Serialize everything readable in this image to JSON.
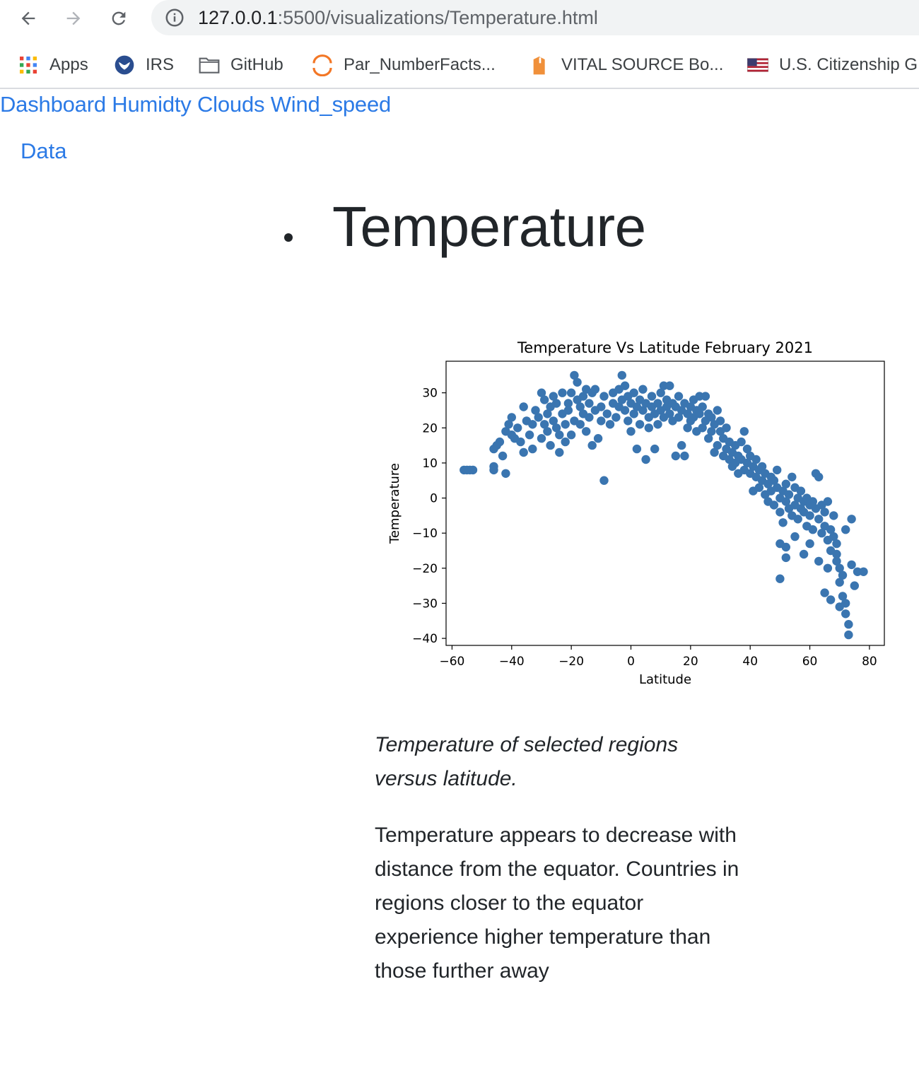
{
  "browser": {
    "url_host": "127.0.0.1",
    "url_rest": ":5500/visualizations/Temperature.html",
    "bookmarks": [
      {
        "label": "Apps",
        "icon": "apps-grid-icon"
      },
      {
        "label": "IRS",
        "icon": "irs-eagle-icon"
      },
      {
        "label": "GitHub",
        "icon": "folder-icon"
      },
      {
        "label": "Par_NumberFacts...",
        "icon": "orange-arc-icon"
      },
      {
        "label": "VITAL SOURCE Bo...",
        "icon": "orange-tag-icon"
      },
      {
        "label": "U.S. Citizenship G",
        "icon": "us-flag-icon"
      }
    ]
  },
  "nav": {
    "links": [
      "Dashboard",
      "Humidty",
      "Clouds",
      "Wind_speed"
    ],
    "data_link": "Data"
  },
  "page": {
    "title": "Temperature",
    "caption": "Temperature of selected regions versus latitude.",
    "description": "Temperature appears to decrease with distance from the equator. Countries in regions closer to the equator experience higher temperature than those further away"
  },
  "chart_data": {
    "type": "scatter",
    "title": "Temperature Vs Latitude February 2021",
    "xlabel": "Latitude",
    "ylabel": "Temperature",
    "xlim": [
      -62,
      85
    ],
    "ylim": [
      -42,
      39
    ],
    "xticks": [
      -60,
      -40,
      -20,
      0,
      20,
      40,
      60,
      80
    ],
    "yticks": [
      30,
      20,
      10,
      0,
      -10,
      -20,
      -30,
      -40
    ],
    "grid": false,
    "legend": "none",
    "point_color": "#3a75b0",
    "points": [
      [
        -56,
        8
      ],
      [
        -55,
        8
      ],
      [
        -54,
        8
      ],
      [
        -53,
        8
      ],
      [
        -46,
        9
      ],
      [
        -46,
        8
      ],
      [
        -42,
        7
      ],
      [
        -46,
        14
      ],
      [
        -45,
        15
      ],
      [
        -44,
        16
      ],
      [
        -43,
        12
      ],
      [
        -42,
        19
      ],
      [
        -41,
        21
      ],
      [
        -40,
        23
      ],
      [
        -40,
        18
      ],
      [
        -39,
        17
      ],
      [
        -38,
        20
      ],
      [
        -37,
        16
      ],
      [
        -36,
        26
      ],
      [
        -36,
        13
      ],
      [
        -35,
        22
      ],
      [
        -34,
        18
      ],
      [
        -33,
        21
      ],
      [
        -33,
        14
      ],
      [
        -32,
        25
      ],
      [
        -31,
        23
      ],
      [
        -30,
        30
      ],
      [
        -30,
        17
      ],
      [
        -29,
        28
      ],
      [
        -29,
        21
      ],
      [
        -28,
        24
      ],
      [
        -28,
        19
      ],
      [
        -27,
        26
      ],
      [
        -27,
        15
      ],
      [
        -26,
        22
      ],
      [
        -26,
        29
      ],
      [
        -25,
        20
      ],
      [
        -25,
        27
      ],
      [
        -24,
        18
      ],
      [
        -24,
        13
      ],
      [
        -23,
        24
      ],
      [
        -23,
        30
      ],
      [
        -22,
        21
      ],
      [
        -22,
        16
      ],
      [
        -21,
        27
      ],
      [
        -21,
        25
      ],
      [
        -20,
        30
      ],
      [
        -20,
        18
      ],
      [
        -19,
        22
      ],
      [
        -19,
        35
      ],
      [
        -18,
        28
      ],
      [
        -18,
        33
      ],
      [
        -17,
        26
      ],
      [
        -17,
        21
      ],
      [
        -16,
        29
      ],
      [
        -16,
        24
      ],
      [
        -15,
        31
      ],
      [
        -15,
        19
      ],
      [
        -14,
        27
      ],
      [
        -14,
        23
      ],
      [
        -13,
        30
      ],
      [
        -13,
        15
      ],
      [
        -12,
        25
      ],
      [
        -12,
        31
      ],
      [
        -11,
        17
      ],
      [
        -10,
        22
      ],
      [
        -10,
        26
      ],
      [
        -9,
        29
      ],
      [
        -9,
        5
      ],
      [
        -8,
        24
      ],
      [
        -7,
        21
      ],
      [
        -6,
        27
      ],
      [
        -6,
        30
      ],
      [
        -5,
        23
      ],
      [
        -4,
        26
      ],
      [
        -4,
        31
      ],
      [
        -3,
        28
      ],
      [
        -3,
        35
      ],
      [
        -2,
        25
      ],
      [
        -2,
        32
      ],
      [
        -1,
        29
      ],
      [
        -1,
        22
      ],
      [
        0,
        27
      ],
      [
        0,
        19
      ],
      [
        1,
        30
      ],
      [
        1,
        24
      ],
      [
        2,
        26
      ],
      [
        2,
        14
      ],
      [
        3,
        28
      ],
      [
        3,
        21
      ],
      [
        4,
        25
      ],
      [
        4,
        31
      ],
      [
        5,
        27
      ],
      [
        5,
        11
      ],
      [
        6,
        23
      ],
      [
        6,
        20
      ],
      [
        7,
        29
      ],
      [
        7,
        26
      ],
      [
        8,
        24
      ],
      [
        8,
        14
      ],
      [
        9,
        27
      ],
      [
        9,
        21
      ],
      [
        10,
        30
      ],
      [
        10,
        25
      ],
      [
        11,
        32
      ],
      [
        11,
        23
      ],
      [
        12,
        28
      ],
      [
        12,
        26
      ],
      [
        13,
        24
      ],
      [
        13,
        32
      ],
      [
        14,
        22
      ],
      [
        14,
        27
      ],
      [
        15,
        26
      ],
      [
        15,
        12
      ],
      [
        16,
        29
      ],
      [
        16,
        23
      ],
      [
        17,
        25
      ],
      [
        17,
        15
      ],
      [
        18,
        27
      ],
      [
        18,
        12
      ],
      [
        19,
        24
      ],
      [
        19,
        20
      ],
      [
        20,
        26
      ],
      [
        20,
        22
      ],
      [
        21,
        28
      ],
      [
        21,
        23
      ],
      [
        22,
        25
      ],
      [
        22,
        19
      ],
      [
        23,
        29
      ],
      [
        23,
        24
      ],
      [
        24,
        20
      ],
      [
        24,
        26
      ],
      [
        25,
        29
      ],
      [
        25,
        22
      ],
      [
        26,
        24
      ],
      [
        26,
        17
      ],
      [
        27,
        19
      ],
      [
        27,
        23
      ],
      [
        28,
        21
      ],
      [
        28,
        13
      ],
      [
        29,
        25
      ],
      [
        29,
        15
      ],
      [
        30,
        22
      ],
      [
        30,
        19
      ],
      [
        31,
        12
      ],
      [
        31,
        17
      ],
      [
        32,
        20
      ],
      [
        32,
        14
      ],
      [
        33,
        11
      ],
      [
        33,
        16
      ],
      [
        34,
        13
      ],
      [
        34,
        9
      ],
      [
        35,
        15
      ],
      [
        35,
        10
      ],
      [
        36,
        12
      ],
      [
        36,
        7
      ],
      [
        37,
        16
      ],
      [
        37,
        11
      ],
      [
        38,
        19
      ],
      [
        38,
        8
      ],
      [
        39,
        10
      ],
      [
        39,
        14
      ],
      [
        40,
        12
      ],
      [
        40,
        7
      ],
      [
        41,
        9
      ],
      [
        41,
        2
      ],
      [
        42,
        6
      ],
      [
        42,
        11
      ],
      [
        43,
        8
      ],
      [
        43,
        3
      ],
      [
        44,
        5
      ],
      [
        44,
        9
      ],
      [
        45,
        1
      ],
      [
        45,
        7
      ],
      [
        46,
        4
      ],
      [
        46,
        -1
      ],
      [
        47,
        6
      ],
      [
        47,
        2
      ],
      [
        48,
        -2
      ],
      [
        48,
        5
      ],
      [
        49,
        3
      ],
      [
        49,
        8
      ],
      [
        50,
        0
      ],
      [
        50,
        -4
      ],
      [
        51,
        2
      ],
      [
        51,
        -7
      ],
      [
        52,
        4
      ],
      [
        52,
        -1
      ],
      [
        53,
        -3
      ],
      [
        53,
        1
      ],
      [
        54,
        -5
      ],
      [
        54,
        6
      ],
      [
        55,
        -2
      ],
      [
        55,
        3
      ],
      [
        56,
        0
      ],
      [
        56,
        -6
      ],
      [
        57,
        -3
      ],
      [
        57,
        2
      ],
      [
        58,
        -1
      ],
      [
        58,
        -4
      ],
      [
        59,
        -8
      ],
      [
        59,
        0
      ],
      [
        60,
        -2
      ],
      [
        60,
        -5
      ],
      [
        61,
        -1
      ],
      [
        61,
        -9
      ],
      [
        62,
        -3
      ],
      [
        62,
        7
      ],
      [
        63,
        -6
      ],
      [
        63,
        6
      ],
      [
        64,
        -2
      ],
      [
        64,
        -10
      ],
      [
        65,
        -8
      ],
      [
        65,
        -4
      ],
      [
        66,
        -12
      ],
      [
        66,
        -1
      ],
      [
        67,
        -9
      ],
      [
        67,
        -15
      ],
      [
        68,
        -11
      ],
      [
        68,
        -5
      ],
      [
        69,
        -18
      ],
      [
        69,
        -13
      ],
      [
        70,
        -20
      ],
      [
        70,
        -24
      ],
      [
        71,
        -22
      ],
      [
        71,
        -28
      ],
      [
        72,
        -30
      ],
      [
        72,
        -33
      ],
      [
        73,
        -36
      ],
      [
        73,
        -39
      ],
      [
        74,
        -19
      ],
      [
        75,
        -25
      ],
      [
        65,
        -27
      ],
      [
        67,
        -29
      ],
      [
        70,
        -31
      ],
      [
        76,
        -21
      ],
      [
        78,
        -21
      ],
      [
        50,
        -23
      ],
      [
        52,
        -14
      ],
      [
        55,
        -11
      ],
      [
        58,
        -16
      ],
      [
        60,
        -13
      ],
      [
        63,
        -18
      ],
      [
        66,
        -20
      ],
      [
        69,
        -16
      ],
      [
        72,
        -9
      ],
      [
        74,
        -6
      ],
      [
        50,
        -13
      ],
      [
        52,
        -17
      ]
    ]
  }
}
